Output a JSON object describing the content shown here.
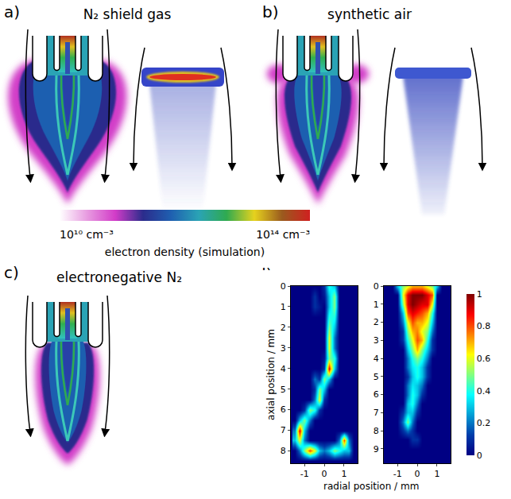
{
  "panels": [
    {
      "letter": "a)",
      "title": "N₂ shield gas"
    },
    {
      "letter": "b)",
      "title": "synthetic air"
    },
    {
      "letter": "c)",
      "title": "electronegative N₂"
    }
  ],
  "density_colorbar": {
    "title": "electron density (simulation)",
    "range": [
      10000000000.0,
      100000000000000.0
    ],
    "log": true,
    "ticks": [
      {
        "value": 10000000000.0,
        "label": "10¹⁰ cm⁻³"
      },
      {
        "value": 100000000000000.0,
        "label": "10¹⁴ cm⁻³"
      }
    ],
    "colors": [
      "#ffffff",
      "#e79ae0",
      "#d23cc8",
      "#2b2c8c",
      "#1f5fb0",
      "#2aa3b5",
      "#2faa50",
      "#e6d21e",
      "#9a5a1e",
      "#d02020"
    ]
  },
  "panel_d": {
    "letter": "d)",
    "xlabel": "radial position / mm",
    "ylabel": "axial position / mm",
    "colorbar": {
      "range": [
        0,
        1
      ],
      "ticks": [
        0,
        0.2,
        0.4,
        0.6,
        0.8,
        1
      ]
    }
  },
  "chart_data": [
    {
      "type": "heatmap",
      "x": [
        -1.5,
        -1.25,
        -1,
        -0.75,
        -0.5,
        -0.25,
        0,
        0.25,
        0.5,
        0.75,
        1,
        1.25,
        1.5
      ],
      "y": [
        0,
        0.5,
        1,
        1.5,
        2,
        2.5,
        3,
        3.5,
        4,
        4.5,
        5,
        5.5,
        6,
        6.5,
        7,
        7.5,
        8,
        8.5
      ],
      "z": [
        [
          0,
          0,
          0,
          0,
          0,
          0,
          0.1,
          0.4,
          0.3,
          0,
          0,
          0,
          0
        ],
        [
          0,
          0,
          0,
          0,
          0.1,
          0,
          0.05,
          0.3,
          0.5,
          0,
          0,
          0,
          0
        ],
        [
          0,
          0,
          0,
          0,
          0.1,
          0.05,
          0,
          0.3,
          0.5,
          0,
          0,
          0,
          0
        ],
        [
          0,
          0,
          0,
          0,
          0,
          0,
          0,
          0.4,
          0.4,
          0,
          0,
          0,
          0
        ],
        [
          0,
          0,
          0,
          0,
          0,
          0,
          0,
          0.5,
          0.3,
          0,
          0,
          0,
          0
        ],
        [
          0,
          0,
          0,
          0,
          0,
          0,
          0,
          0.6,
          0.2,
          0,
          0,
          0,
          0
        ],
        [
          0,
          0,
          0,
          0,
          0,
          0,
          0,
          0.6,
          0.2,
          0,
          0,
          0,
          0
        ],
        [
          0,
          0,
          0,
          0,
          0,
          0,
          0.05,
          0.5,
          0.4,
          0,
          0,
          0,
          0
        ],
        [
          0,
          0,
          0,
          0,
          0,
          0,
          0.1,
          0.9,
          0.3,
          0,
          0,
          0,
          0
        ],
        [
          0,
          0,
          0,
          0,
          0.2,
          0.1,
          0.5,
          0.3,
          0,
          0,
          0,
          0,
          0
        ],
        [
          0,
          0,
          0,
          0,
          0.1,
          0.5,
          0.3,
          0,
          0,
          0,
          0,
          0,
          0
        ],
        [
          0,
          0,
          0,
          0,
          0.2,
          0.6,
          0.1,
          0,
          0,
          0,
          0,
          0,
          0
        ],
        [
          0,
          0,
          0.1,
          0.5,
          0.4,
          0.1,
          0,
          0,
          0,
          0,
          0,
          0,
          0
        ],
        [
          0,
          0.3,
          0.5,
          0.2,
          0,
          0,
          0,
          0,
          0,
          0,
          0,
          0,
          0
        ],
        [
          0.2,
          0.9,
          0.3,
          0,
          0,
          0,
          0,
          0,
          0,
          0,
          0,
          0,
          0
        ],
        [
          0.3,
          0.6,
          0.2,
          0,
          0,
          0,
          0,
          0,
          0,
          0.2,
          0.8,
          0.2,
          0
        ],
        [
          0,
          0.2,
          0.5,
          0.8,
          0.6,
          0.3,
          0.2,
          0.3,
          0.5,
          0.4,
          0.3,
          0.3,
          0
        ],
        [
          0,
          0,
          0,
          0,
          0,
          0,
          0,
          0,
          0,
          0,
          0,
          0,
          0
        ]
      ],
      "xlim": [
        -1.7,
        1.7
      ],
      "xticks": [
        -1,
        0,
        1
      ],
      "ylim": [
        0,
        8.6
      ],
      "yticks": [
        0,
        1,
        2,
        3,
        4,
        5,
        6,
        7,
        8
      ]
    },
    {
      "type": "heatmap",
      "x": [
        -1.5,
        -1.25,
        -1,
        -0.75,
        -0.5,
        -0.25,
        0,
        0.25,
        0.5,
        0.75,
        1,
        1.25,
        1.5
      ],
      "y": [
        0,
        0.5,
        1,
        1.5,
        2,
        2.5,
        3,
        3.5,
        4,
        4.5,
        5,
        5.5,
        6,
        6.5,
        7,
        7.5,
        8,
        8.5,
        9,
        9.5
      ],
      "z": [
        [
          0,
          0,
          0.3,
          0.5,
          0.6,
          0.7,
          0.7,
          0.7,
          0.6,
          0.5,
          0.3,
          0,
          0
        ],
        [
          0,
          0,
          0,
          0.6,
          0.9,
          1,
          1,
          1,
          0.9,
          0.8,
          0,
          0,
          0
        ],
        [
          0,
          0,
          0,
          0.5,
          0.9,
          1,
          0.95,
          0.9,
          0.9,
          0.6,
          0,
          0,
          0
        ],
        [
          0,
          0,
          0,
          0.3,
          0.8,
          0.9,
          0.85,
          0.8,
          0.7,
          0.4,
          0,
          0,
          0
        ],
        [
          0,
          0,
          0,
          0.2,
          0.6,
          0.8,
          0.7,
          0.7,
          0.6,
          0.3,
          0,
          0,
          0
        ],
        [
          0,
          0,
          0,
          0.1,
          0.5,
          0.7,
          0.75,
          0.6,
          0.5,
          0.2,
          0,
          0,
          0
        ],
        [
          0,
          0,
          0,
          0.1,
          0.4,
          0.6,
          0.8,
          0.7,
          0.4,
          0.1,
          0,
          0,
          0
        ],
        [
          0,
          0,
          0,
          0,
          0.3,
          0.5,
          0.7,
          0.5,
          0.3,
          0.1,
          0,
          0,
          0
        ],
        [
          0,
          0,
          0,
          0,
          0.2,
          0.4,
          0.5,
          0.4,
          0.2,
          0,
          0,
          0,
          0
        ],
        [
          0,
          0,
          0,
          0,
          0.2,
          0.35,
          0.4,
          0.3,
          0.1,
          0,
          0,
          0,
          0
        ],
        [
          0,
          0,
          0,
          0,
          0.1,
          0.3,
          0.4,
          0.3,
          0.1,
          0,
          0,
          0,
          0
        ],
        [
          0,
          0,
          0,
          0,
          0.2,
          0.35,
          0.3,
          0.2,
          0,
          0,
          0,
          0,
          0
        ],
        [
          0,
          0,
          0,
          0,
          0.2,
          0.4,
          0.3,
          0.1,
          0,
          0,
          0,
          0,
          0
        ],
        [
          0,
          0,
          0,
          0,
          0.3,
          0.4,
          0.2,
          0,
          0,
          0,
          0,
          0,
          0
        ],
        [
          0,
          0,
          0,
          0.1,
          0.3,
          0.3,
          0.1,
          0,
          0,
          0,
          0,
          0,
          0
        ],
        [
          0,
          0,
          0,
          0.2,
          0.5,
          0.2,
          0,
          0,
          0,
          0,
          0,
          0,
          0
        ],
        [
          0,
          0,
          0,
          0.1,
          0.2,
          0.1,
          0,
          0,
          0,
          0,
          0,
          0,
          0
        ],
        [
          0,
          0,
          0,
          0,
          0,
          0.1,
          0.1,
          0,
          0,
          0,
          0,
          0,
          0
        ],
        [
          0,
          0,
          0,
          0,
          0,
          0,
          0,
          0,
          0,
          0,
          0,
          0,
          0
        ],
        [
          0,
          0,
          0,
          0,
          0,
          0,
          0,
          0,
          0,
          0,
          0,
          0,
          0
        ]
      ],
      "xlim": [
        -1.7,
        1.7
      ],
      "xticks": [
        -1,
        0,
        1
      ],
      "ylim": [
        0,
        9.8
      ],
      "yticks": [
        0,
        1,
        2,
        3,
        4,
        5,
        6,
        7,
        8,
        9
      ]
    }
  ]
}
